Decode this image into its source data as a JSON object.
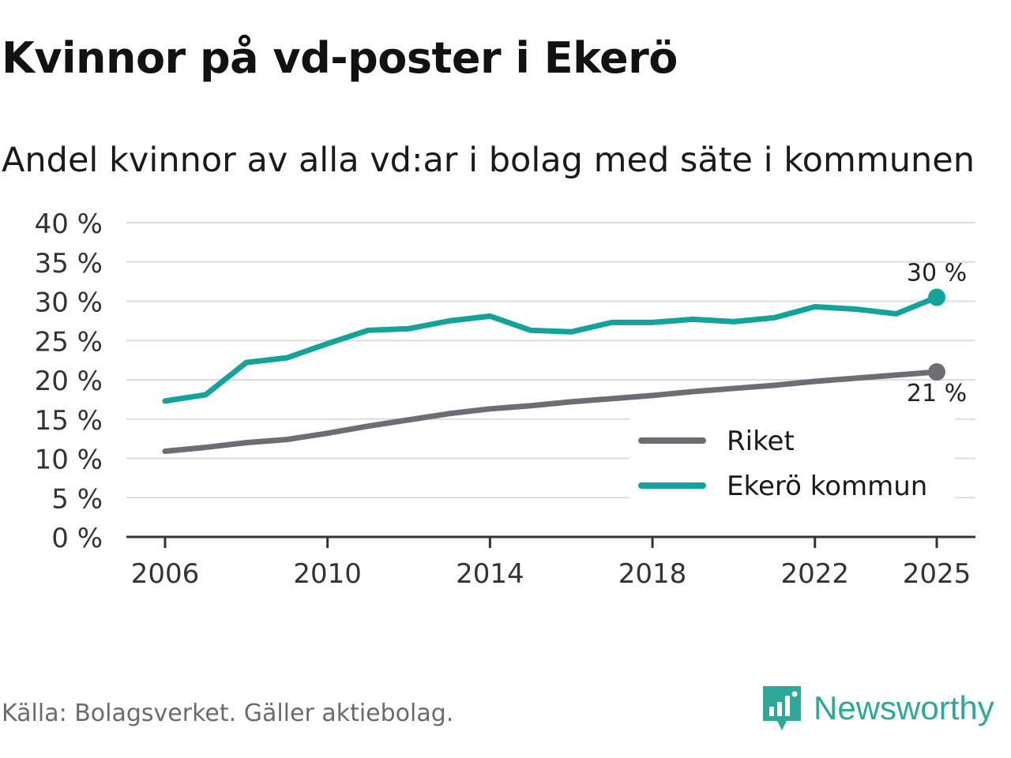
{
  "header": {
    "title": "Kvinnor på vd-poster i Ekerö",
    "subtitle": "Andel kvinnor av alla vd:ar i bolag med säte i kommunen"
  },
  "footer": {
    "source": "Källa: Bolagsverket. Gäller aktiebolag.",
    "brand": "Newsworthy"
  },
  "chart_data": {
    "type": "line",
    "title": "Kvinnor på vd-poster i Ekerö",
    "subtitle": "Andel kvinnor av alla vd:ar i bolag med säte i kommunen",
    "xlabel": "",
    "ylabel": "",
    "x": [
      2006,
      2007,
      2008,
      2009,
      2010,
      2011,
      2012,
      2013,
      2014,
      2015,
      2016,
      2017,
      2018,
      2019,
      2020,
      2021,
      2022,
      2023,
      2024,
      2025
    ],
    "x_ticks": [
      2006,
      2010,
      2014,
      2018,
      2022,
      2025
    ],
    "x_tick_labels": [
      "2006",
      "2010",
      "2014",
      "2018",
      "2022",
      "2025"
    ],
    "ylim": [
      0,
      40
    ],
    "y_ticks": [
      0,
      5,
      10,
      15,
      20,
      25,
      30,
      35,
      40
    ],
    "y_tick_labels": [
      "0 %",
      "5 %",
      "10 %",
      "15 %",
      "20 %",
      "25 %",
      "30 %",
      "35 %",
      "40 %"
    ],
    "grid": true,
    "legend_position": "bottom-right",
    "series": [
      {
        "name": "Riket",
        "color": "#6e6d73",
        "values": [
          10.9,
          11.4,
          12.0,
          12.4,
          13.2,
          14.1,
          14.9,
          15.7,
          16.3,
          16.7,
          17.2,
          17.6,
          18.0,
          18.5,
          18.9,
          19.3,
          19.8,
          20.2,
          20.6,
          21.0
        ],
        "end_label": "21 %"
      },
      {
        "name": "Ekerö kommun",
        "color": "#14a39b",
        "values": [
          17.3,
          18.1,
          22.2,
          22.8,
          24.6,
          26.3,
          26.5,
          27.5,
          28.1,
          26.3,
          26.1,
          27.3,
          27.3,
          27.7,
          27.4,
          27.9,
          29.3,
          29.0,
          28.4,
          30.5
        ],
        "end_label": "30 %"
      }
    ]
  }
}
